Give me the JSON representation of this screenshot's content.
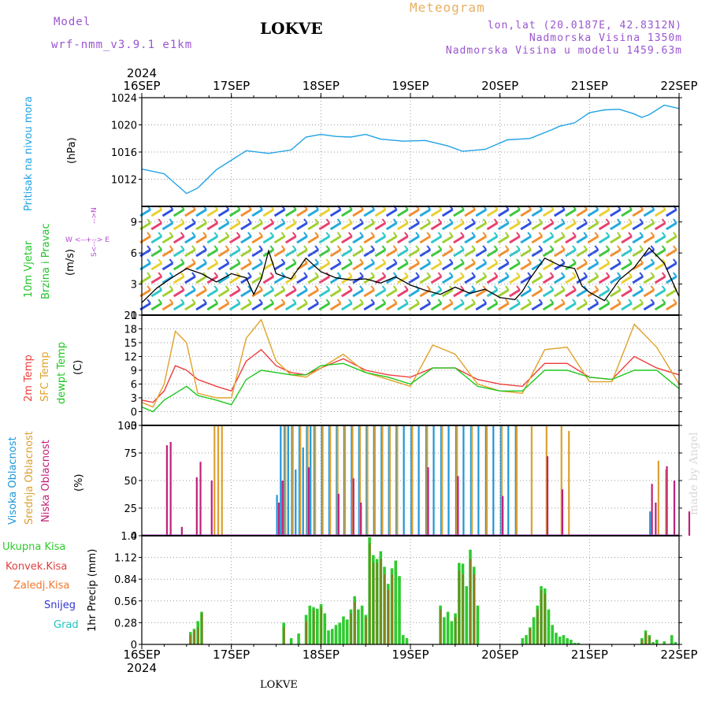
{
  "header": {
    "model_label": "Model",
    "model_name": "wrf-nmm_v3.9.1 e1km",
    "station": "LOKVE",
    "meteogram": "Meteogram",
    "lonlat": "lon,lat (20.0187E, 42.8312N)",
    "elevation": "Nadmorska Visina 1350m",
    "model_elevation": "Nadmorska Visina u modelu 1459.63m",
    "credit": "made by Angel",
    "footer_station": "LOKVE"
  },
  "time_axis": {
    "year": "2024",
    "labels": [
      "16SEP",
      "17SEP",
      "18SEP",
      "19SEP",
      "20SEP",
      "21SEP",
      "22SEP"
    ]
  },
  "colors": {
    "pressure": "#1fa2e6",
    "wind_label": "#21c32a",
    "dir_label": "#b548d4",
    "temp2m": "#ee3d3d",
    "sfc": "#e0a22a",
    "dewpt": "#1ec81e",
    "cloud_high": "#1e96d8",
    "cloud_mid": "#dca030",
    "cloud_low": "#c0207a",
    "precip_total": "#2fcb2f",
    "precip_conv": "#e04040",
    "freezing": "#f07a2c",
    "snow": "#3434d0",
    "hail": "#22c4c4",
    "model": "#9a55d0",
    "meteo": "#e8b060"
  },
  "panels": {
    "pressure": {
      "label": "Pritisak na nivou mora",
      "unit": "(hPa)",
      "ticks": [
        "1012",
        "1016",
        "1020",
        "1024"
      ]
    },
    "wind": {
      "label1": "10m Vjetar",
      "label2": "Brzina i Pravac",
      "unit": "(m/s)",
      "ticks": [
        "0",
        "3",
        "6",
        "9"
      ],
      "dir_legend": "W <--+--> E",
      "dir_s": "S<--",
      "dir_n": "-->N"
    },
    "temp": {
      "label1": "2m Temp",
      "label2": "SFC Temp",
      "label3": "dewpt Temp",
      "unit": "(C)",
      "ticks": [
        "-3",
        "0",
        "3",
        "6",
        "9",
        "12",
        "15",
        "18",
        "21"
      ]
    },
    "cloud": {
      "label1": "Visoka Oblacnost",
      "label2": "Srednja Oblacnost",
      "label3": "Niska Oblacnost",
      "unit": "(%)",
      "ticks": [
        "0",
        "25",
        "50",
        "75",
        "100"
      ]
    },
    "precip": {
      "legend": [
        "Ukupna Kisa",
        "Konvek.Kisa",
        "Zaledj.Kisa",
        "Snijeg",
        "Grad"
      ],
      "unit": "1hr Precip (mm)",
      "ticks": [
        "0",
        "0.28",
        "0.56",
        "0.84",
        "1.12",
        "1.4"
      ]
    }
  },
  "chart_data": [
    {
      "type": "line",
      "title": "Pritisak na nivou mora",
      "ylabel": "(hPa)",
      "ylim": [
        1008,
        1024
      ],
      "grid": true,
      "x_hours": [
        0,
        6,
        12,
        15,
        20,
        24,
        28,
        34,
        40,
        44,
        48,
        52,
        56,
        60,
        64,
        70,
        76,
        82,
        86,
        92,
        98,
        104,
        110,
        112,
        116,
        120,
        124,
        128,
        132,
        134,
        136,
        140,
        144
      ],
      "series": [
        {
          "values": [
            1013.5,
            1012.8,
            1009.9,
            1010.7,
            1013.4,
            1014.8,
            1016.2,
            1015.8,
            1016.3,
            1018.2,
            1018.6,
            1018.3,
            1018.2,
            1018.6,
            1017.9,
            1017.6,
            1017.7,
            1016.9,
            1016.1,
            1016.4,
            1017.8,
            1018.0,
            1019.3,
            1019.8,
            1020.3,
            1021.8,
            1022.2,
            1022.3,
            1021.6,
            1021.1,
            1021.5,
            1022.9,
            1022.4
          ]
        }
      ]
    },
    {
      "type": "line",
      "title": "10m Vjetar Brzina i Pravac",
      "ylabel": "(m/s)",
      "ylim": [
        0,
        10.5
      ],
      "grid": true,
      "x_hours": [
        0,
        4,
        8,
        12,
        16,
        20,
        24,
        28,
        30,
        32,
        34,
        36,
        40,
        44,
        48,
        52,
        56,
        60,
        64,
        68,
        72,
        76,
        80,
        84,
        88,
        92,
        96,
        100,
        102,
        104,
        106,
        108,
        112,
        116,
        118,
        120,
        124,
        126,
        128,
        132,
        136,
        140,
        144
      ],
      "series": [
        {
          "values": [
            1.2,
            2.6,
            3.6,
            4.5,
            4.0,
            3.2,
            4.0,
            3.6,
            2.0,
            3.5,
            6.2,
            4.0,
            3.5,
            5.5,
            4.2,
            3.6,
            3.4,
            3.5,
            3.1,
            3.7,
            2.9,
            2.4,
            2.0,
            2.7,
            2.1,
            2.5,
            1.7,
            1.5,
            2.3,
            3.5,
            4.5,
            5.5,
            4.8,
            4.5,
            2.8,
            2.2,
            1.4,
            2.4,
            3.4,
            4.6,
            6.5,
            5.0,
            1.8
          ]
        }
      ],
      "barbs": "dense wind barbs coloured by speed"
    },
    {
      "type": "line",
      "title": "2m Temp / SFC Temp / dewpt Temp",
      "ylabel": "(C)",
      "ylim": [
        -3,
        21
      ],
      "grid": true,
      "x_hours": [
        0,
        3,
        6,
        9,
        12,
        15,
        20,
        24,
        28,
        32,
        36,
        40,
        44,
        48,
        54,
        60,
        66,
        72,
        78,
        84,
        90,
        96,
        102,
        108,
        114,
        120,
        126,
        132,
        138,
        144
      ],
      "series": [
        {
          "name": "2m Temp",
          "values": [
            2.5,
            2.0,
            4.5,
            10.0,
            9.0,
            7.0,
            5.5,
            4.5,
            11.0,
            13.5,
            10.0,
            8.5,
            8.0,
            9.5,
            11.5,
            9.0,
            8.0,
            7.5,
            9.5,
            9.5,
            7.0,
            6.0,
            5.5,
            10.5,
            10.5,
            7.5,
            7.0,
            12.0,
            9.5,
            8.0
          ]
        },
        {
          "name": "SFC Temp",
          "values": [
            2.0,
            1.0,
            6.0,
            17.5,
            15.0,
            4.0,
            3.0,
            3.0,
            16.0,
            20.0,
            11.0,
            8.0,
            7.5,
            9.5,
            12.5,
            8.5,
            7.0,
            5.5,
            14.5,
            12.5,
            6.0,
            4.5,
            4.0,
            13.5,
            14.0,
            6.5,
            6.5,
            19.0,
            14.0,
            6.0
          ]
        },
        {
          "name": "dewpt Temp",
          "values": [
            1.0,
            0.0,
            2.5,
            4.0,
            5.5,
            3.5,
            2.5,
            1.5,
            7.0,
            9.0,
            8.5,
            8.0,
            8.0,
            10.0,
            10.5,
            8.5,
            7.5,
            6.0,
            9.5,
            9.5,
            5.5,
            4.5,
            4.5,
            9.0,
            9.0,
            7.5,
            7.0,
            9.0,
            9.0,
            5.0
          ]
        }
      ]
    },
    {
      "type": "bar",
      "title": "Oblacnost",
      "ylabel": "(%)",
      "ylim": [
        0,
        100
      ],
      "grid": true,
      "series": [
        {
          "name": "Visoka Oblacnost",
          "x_hours": [
            36,
            37,
            38,
            39,
            40,
            41,
            42,
            43,
            44,
            45,
            46,
            48,
            50,
            52,
            54,
            56,
            58,
            60,
            62,
            64,
            66,
            68,
            70,
            72,
            74,
            76,
            78,
            80,
            82,
            84,
            86,
            88,
            90,
            92,
            94,
            96,
            98,
            100,
            136
          ],
          "values": [
            37,
            100,
            100,
            100,
            100,
            60,
            100,
            80,
            100,
            100,
            100,
            100,
            100,
            100,
            100,
            100,
            100,
            100,
            100,
            100,
            100,
            100,
            100,
            100,
            100,
            100,
            100,
            100,
            100,
            100,
            100,
            100,
            100,
            100,
            100,
            100,
            100,
            100,
            22
          ]
        },
        {
          "name": "Srednja Oblacnost",
          "x_hours": [
            19,
            20,
            21,
            38,
            40,
            42,
            44,
            46,
            48,
            50,
            52,
            54,
            56,
            58,
            60,
            62,
            64,
            66,
            68,
            72,
            76,
            80,
            84,
            88,
            92,
            96,
            100,
            104,
            108,
            112,
            114,
            138,
            140
          ],
          "values": [
            100,
            100,
            100,
            100,
            100,
            100,
            100,
            100,
            100,
            100,
            100,
            100,
            100,
            100,
            100,
            100,
            100,
            100,
            100,
            100,
            100,
            100,
            100,
            100,
            100,
            100,
            100,
            100,
            100,
            100,
            95,
            68,
            60
          ]
        },
        {
          "name": "Niska Oblacnost",
          "x_hours": [
            6,
            7,
            10,
            14,
            15,
            18,
            36,
            37,
            44,
            52,
            56,
            58,
            76,
            84,
            96,
            108,
            112,
            136,
            137,
            140,
            142,
            146
          ],
          "values": [
            82,
            85,
            8,
            53,
            67,
            50,
            30,
            50,
            62,
            38,
            52,
            30,
            62,
            54,
            36,
            72,
            42,
            47,
            30,
            63,
            50,
            22
          ]
        }
      ]
    },
    {
      "type": "bar",
      "title": "1hr Precip (mm)",
      "ylabel": "1hr Precip (mm)",
      "ylim": [
        0,
        1.4
      ],
      "grid": true,
      "series": [
        {
          "name": "Ukupna Kisa",
          "x_hours": [
            13,
            14,
            15,
            16,
            38,
            40,
            42,
            44,
            45,
            46,
            47,
            48,
            49,
            50,
            51,
            52,
            53,
            54,
            55,
            56,
            57,
            58,
            59,
            60,
            61,
            62,
            63,
            64,
            65,
            66,
            67,
            68,
            69,
            70,
            71,
            80,
            81,
            82,
            83,
            84,
            85,
            86,
            87,
            88,
            89,
            90,
            102,
            103,
            104,
            105,
            106,
            107,
            108,
            109,
            110,
            111,
            112,
            113,
            114,
            115,
            116,
            117,
            134,
            135,
            136,
            137,
            138,
            140,
            142,
            143
          ],
          "values": [
            0.16,
            0.2,
            0.3,
            0.42,
            0.28,
            0.08,
            0.14,
            0.38,
            0.5,
            0.48,
            0.46,
            0.52,
            0.4,
            0.18,
            0.2,
            0.25,
            0.28,
            0.36,
            0.32,
            0.45,
            0.62,
            0.45,
            0.5,
            0.38,
            1.38,
            1.15,
            1.1,
            1.2,
            1.0,
            0.78,
            0.98,
            1.08,
            0.88,
            0.12,
            0.08,
            0.5,
            0.35,
            0.42,
            0.3,
            0.4,
            1.05,
            1.04,
            0.75,
            1.22,
            1.0,
            0.5,
            0.08,
            0.12,
            0.22,
            0.35,
            0.5,
            0.75,
            0.72,
            0.45,
            0.25,
            0.15,
            0.1,
            0.12,
            0.08,
            0.06,
            0.02,
            0.02,
            0.08,
            0.18,
            0.12,
            0.03,
            0.06,
            0.04,
            0.12,
            0.03
          ]
        },
        {
          "name": "Konvek.Kisa",
          "x_hours": [
            13,
            14,
            15,
            16,
            38,
            44,
            46,
            48,
            56,
            57,
            60,
            61,
            62,
            63,
            64,
            65,
            66,
            67,
            80,
            84,
            85,
            86,
            88,
            89,
            104,
            106,
            107,
            108,
            134,
            135,
            136
          ],
          "values": [
            0.12,
            0.18,
            0.22,
            0.4,
            0.22,
            0.3,
            0.44,
            0.48,
            0.4,
            0.55,
            0.35,
            1.3,
            1.05,
            1.05,
            1.1,
            0.9,
            0.7,
            0.9,
            0.45,
            0.35,
            0.95,
            0.9,
            1.1,
            0.9,
            0.2,
            0.45,
            0.7,
            0.65,
            0.06,
            0.15,
            0.1
          ]
        }
      ]
    }
  ]
}
